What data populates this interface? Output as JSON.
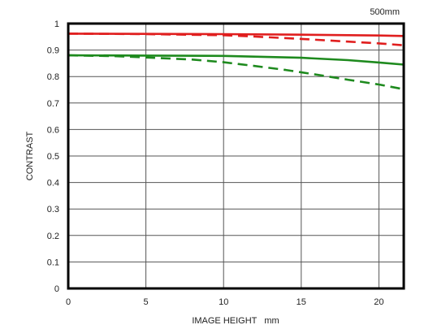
{
  "chart_data": {
    "type": "line",
    "title": "500mm",
    "xlabel": "IMAGE HEIGHT   mm",
    "ylabel": "CONTRAST",
    "xlim": [
      0,
      21.6
    ],
    "ylim": [
      0,
      1
    ],
    "xticks": [
      0,
      5,
      10,
      15,
      20
    ],
    "yticks": [
      0,
      0.1,
      0.2,
      0.3,
      0.4,
      0.5,
      0.6,
      0.7,
      0.8,
      0.9,
      1
    ],
    "xtick_labels": [
      "0",
      "5",
      "10",
      "15",
      "20"
    ],
    "ytick_labels": [
      "0",
      "0.1",
      "0.2",
      "0.3",
      "0.4",
      "0.5",
      "0.6",
      "0.7",
      "0.8",
      "0.9",
      "1"
    ],
    "grid": true,
    "series": [
      {
        "color": "#e01e1e",
        "dash": "solid",
        "x": [
          0,
          5,
          10,
          15,
          20,
          21.6
        ],
        "y": [
          0.962,
          0.961,
          0.96,
          0.958,
          0.955,
          0.953
        ]
      },
      {
        "color": "#e01e1e",
        "dash": "dashed",
        "x": [
          0,
          5,
          10,
          12,
          15,
          18,
          20,
          21.6
        ],
        "y": [
          0.962,
          0.96,
          0.956,
          0.951,
          0.942,
          0.932,
          0.925,
          0.918
        ]
      },
      {
        "color": "#1e8a1e",
        "dash": "solid",
        "x": [
          0,
          5,
          10,
          15,
          18,
          20,
          21.6
        ],
        "y": [
          0.88,
          0.879,
          0.878,
          0.871,
          0.862,
          0.853,
          0.845
        ]
      },
      {
        "color": "#1e8a1e",
        "dash": "dashed",
        "x": [
          0,
          3,
          5,
          8,
          10,
          12,
          14,
          16,
          18,
          20,
          21.6
        ],
        "y": [
          0.88,
          0.877,
          0.872,
          0.864,
          0.854,
          0.84,
          0.825,
          0.807,
          0.788,
          0.77,
          0.752
        ]
      }
    ]
  }
}
